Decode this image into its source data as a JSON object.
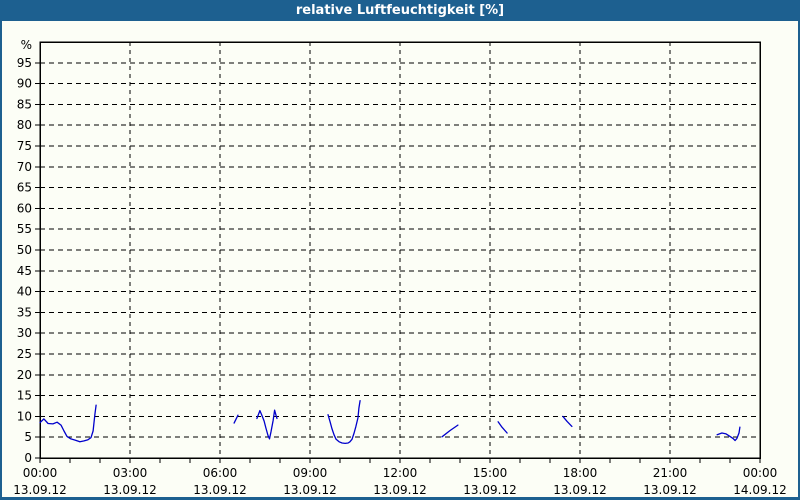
{
  "window": {
    "title": "relative Luftfeuchtigkeit [%]"
  },
  "colors": {
    "frame_blue": "#1d6090",
    "title_text": "#ffffff",
    "background": "#fcfef6",
    "plot_frame": "#000000",
    "grid": "#000000",
    "series_line": "#0000cc"
  },
  "chart_data": {
    "type": "line",
    "title": "relative Luftfeuchtigkeit [%]",
    "ylabel": "%",
    "ylim": [
      0,
      100
    ],
    "y_axis": {
      "unit_label": "%",
      "tick_min": 0,
      "tick_max": 95,
      "tick_step": 5
    },
    "x_axis": {
      "range_hours": [
        0,
        24
      ],
      "minor_tick_hours": 1,
      "major_tick_hours": 3,
      "ticks": [
        {
          "hour": 0,
          "time": "00:00",
          "date": "13.09.12"
        },
        {
          "hour": 3,
          "time": "03:00",
          "date": "13.09.12"
        },
        {
          "hour": 6,
          "time": "06:00",
          "date": "13.09.12"
        },
        {
          "hour": 9,
          "time": "09:00",
          "date": "13.09.12"
        },
        {
          "hour": 12,
          "time": "12:00",
          "date": "13.09.12"
        },
        {
          "hour": 15,
          "time": "15:00",
          "date": "13.09.12"
        },
        {
          "hour": 18,
          "time": "18:00",
          "date": "13.09.12"
        },
        {
          "hour": 21,
          "time": "21:00",
          "date": "13.09.12"
        },
        {
          "hour": 24,
          "time": "00:00",
          "date": "14.09.12"
        }
      ]
    },
    "grid": "dashed",
    "legend": "none",
    "series": [
      {
        "name": "relative Luftfeuchtigkeit",
        "color": "#0000cc",
        "unit": "%",
        "segments": [
          [
            [
              0.0,
              8.5
            ],
            [
              0.13,
              9.4
            ],
            [
              0.27,
              8.3
            ],
            [
              0.43,
              8.2
            ],
            [
              0.57,
              8.6
            ],
            [
              0.7,
              7.9
            ],
            [
              0.8,
              6.5
            ],
            [
              0.9,
              5.2
            ],
            [
              1.03,
              4.6
            ],
            [
              1.17,
              4.3
            ],
            [
              1.33,
              3.9
            ],
            [
              1.47,
              4.1
            ],
            [
              1.6,
              4.4
            ],
            [
              1.7,
              4.9
            ],
            [
              1.77,
              6.5
            ],
            [
              1.8,
              8.5
            ],
            [
              1.83,
              10.5
            ],
            [
              1.87,
              12.7
            ]
          ],
          [
            [
              6.47,
              8.4
            ],
            [
              6.6,
              10.3
            ]
          ],
          [
            [
              7.23,
              9.5
            ],
            [
              7.33,
              11.4
            ],
            [
              7.4,
              10.2
            ],
            [
              7.47,
              8.9
            ],
            [
              7.53,
              7.2
            ],
            [
              7.6,
              5.4
            ],
            [
              7.65,
              4.6
            ],
            [
              7.7,
              6.3
            ],
            [
              7.77,
              9.0
            ],
            [
              7.82,
              11.5
            ],
            [
              7.87,
              10.2
            ],
            [
              7.9,
              9.5
            ]
          ],
          [
            [
              9.6,
              10.4
            ],
            [
              9.67,
              8.7
            ],
            [
              9.73,
              7.1
            ],
            [
              9.8,
              5.6
            ],
            [
              9.87,
              4.5
            ],
            [
              9.97,
              3.9
            ],
            [
              10.07,
              3.6
            ],
            [
              10.17,
              3.5
            ],
            [
              10.27,
              3.6
            ],
            [
              10.33,
              3.9
            ],
            [
              10.4,
              4.5
            ],
            [
              10.47,
              6.0
            ],
            [
              10.53,
              7.6
            ],
            [
              10.6,
              9.7
            ],
            [
              10.63,
              12.0
            ],
            [
              10.67,
              13.8
            ]
          ],
          [
            [
              13.4,
              5.1
            ],
            [
              13.67,
              6.6
            ],
            [
              13.93,
              7.9
            ]
          ],
          [
            [
              15.27,
              8.7
            ],
            [
              15.4,
              7.4
            ],
            [
              15.57,
              6.0
            ]
          ],
          [
            [
              17.43,
              10.0
            ],
            [
              17.57,
              8.8
            ],
            [
              17.73,
              7.6
            ]
          ],
          [
            [
              22.57,
              5.6
            ],
            [
              22.73,
              6.0
            ],
            [
              22.87,
              5.8
            ],
            [
              23.0,
              5.2
            ],
            [
              23.1,
              4.7
            ],
            [
              23.17,
              4.2
            ],
            [
              23.23,
              4.7
            ],
            [
              23.3,
              6.0
            ],
            [
              23.33,
              7.4
            ]
          ]
        ]
      }
    ]
  }
}
